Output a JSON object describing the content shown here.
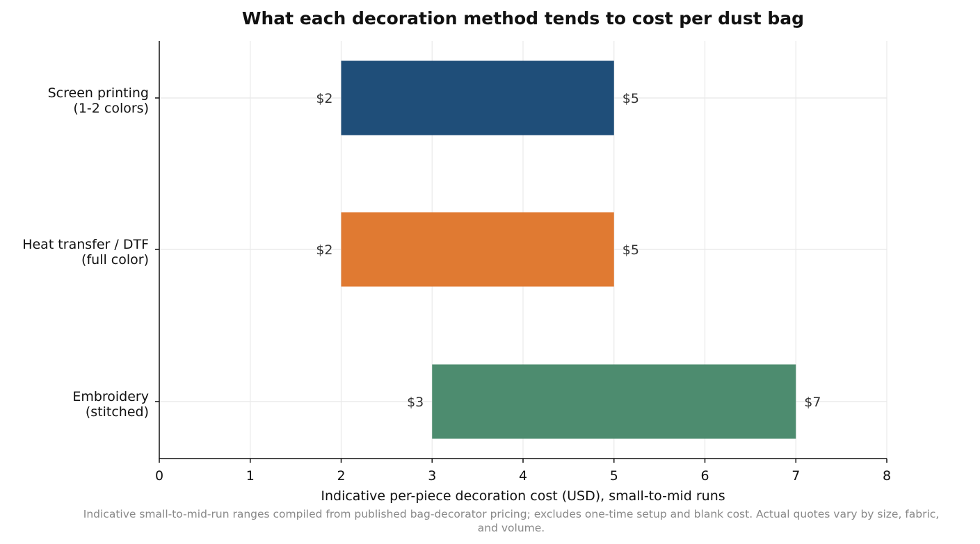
{
  "chart_data": {
    "type": "bar",
    "orientation": "horizontal",
    "subtype": "range",
    "title": "What each decoration method tends to cost per dust bag",
    "xlabel": "Indicative per-piece decoration cost (USD), small-to-mid runs",
    "ylabel": "",
    "xlim": [
      0,
      8
    ],
    "xticks": [
      0,
      1,
      2,
      3,
      4,
      5,
      6,
      7,
      8
    ],
    "grid": true,
    "legend": "none",
    "categories": [
      {
        "lines": [
          "Screen printing",
          "(1-2 colors)"
        ],
        "low": 2,
        "high": 5,
        "low_label": "$2",
        "high_label": "$5",
        "color": "#1f4e79"
      },
      {
        "lines": [
          "Heat transfer / DTF",
          "(full color)"
        ],
        "low": 2,
        "high": 5,
        "low_label": "$2",
        "high_label": "$5",
        "color": "#e07a32"
      },
      {
        "lines": [
          "Embroidery",
          "(stitched)"
        ],
        "low": 3,
        "high": 7,
        "low_label": "$3",
        "high_label": "$7",
        "color": "#4d8c6f"
      }
    ],
    "footnote_lines": [
      "Indicative small-to-mid-run ranges compiled from published bag-decorator pricing; excludes one-time setup and blank cost. Actual quotes vary by size, fabric,",
      "and volume."
    ]
  }
}
